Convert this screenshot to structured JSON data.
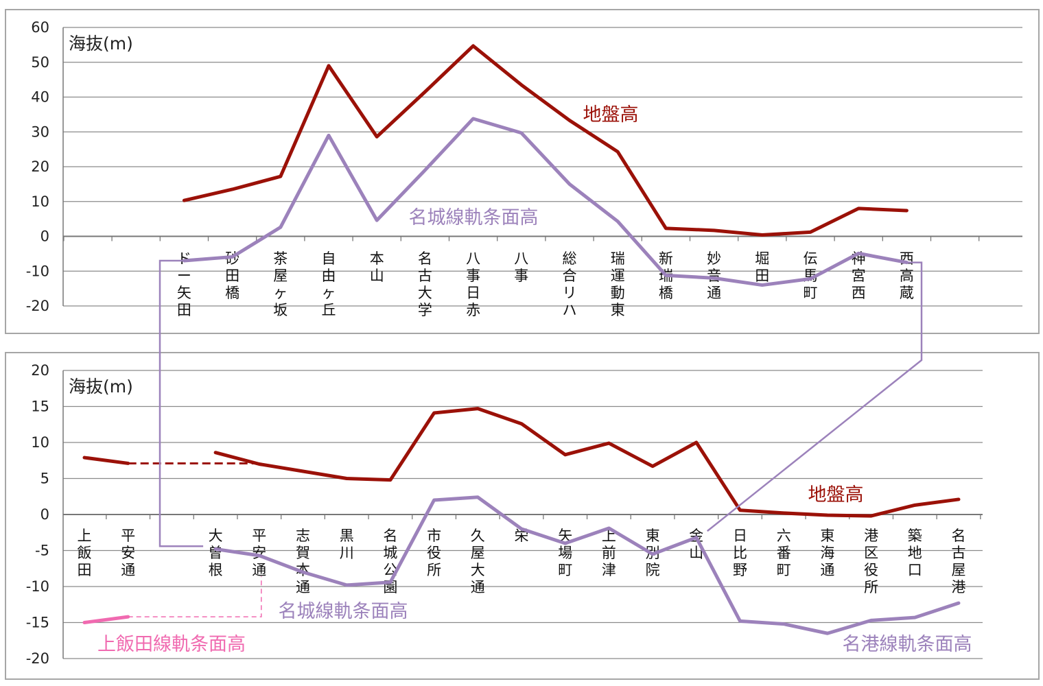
{
  "colors": {
    "ground": "#9b1108",
    "rail": "#9c82bb",
    "kamiiida": "#f06ab0",
    "grid": "#8a8a8a",
    "frame": "#a6a6a6"
  },
  "chart_data": [
    {
      "type": "line",
      "ylabel": "海抜(m)",
      "ylim": [
        -20,
        60
      ],
      "yticks": [
        60,
        50,
        40,
        30,
        20,
        10,
        0,
        -10,
        -20
      ],
      "grid": true,
      "categories": [
        "",
        "",
        "ド|ー|矢|田",
        "砂|田|橋",
        "茶|屋|ヶ|坂",
        "自|由|ヶ|丘",
        "本|山",
        "名|古|大|学",
        "八|事|日|赤",
        "八|事",
        "総|合|リ|ハ",
        "瑞|運|動|東",
        "新|瑞|橋",
        "妙|音|通",
        "堀|田",
        "伝|馬|町",
        "神|宮|西",
        "西|高|蔵",
        ""
      ],
      "series": [
        {
          "name": "地盤高",
          "color": "ground",
          "values": [
            null,
            null,
            10.3,
            13.5,
            17.2,
            49,
            28.6,
            41.5,
            54.7,
            43.5,
            33.3,
            24.3,
            2.3,
            1.7,
            0.4,
            1.2,
            8,
            7.4,
            null
          ]
        },
        {
          "name": "名城線軌条面高",
          "color": "rail",
          "values": [
            null,
            null,
            -7,
            -5.9,
            2.6,
            29,
            4.6,
            19,
            33.8,
            29.7,
            15,
            4.3,
            -11.2,
            -12,
            -14,
            -12.2,
            -4.9,
            -7.5,
            null
          ]
        }
      ],
      "annotations": [
        {
          "text": "地盤高",
          "color": "ground"
        },
        {
          "text": "名城線軌条面高",
          "color": "rail"
        }
      ]
    },
    {
      "type": "line",
      "ylabel": "海抜(m)",
      "ylim": [
        -20,
        20
      ],
      "yticks": [
        20,
        15,
        10,
        5,
        0,
        -5,
        -10,
        -15,
        -20
      ],
      "grid": true,
      "categories": [
        "上|飯|田",
        "平|安|通",
        "",
        "大|曽|根",
        "平|安|通",
        "志|賀|本|通",
        "黒|川",
        "名|城|公|園",
        "市|役|所",
        "久|屋|大|通",
        "栄",
        "矢|場|町",
        "上|前|津",
        "東|別|院",
        "金|山",
        "日|比|野",
        "六|番|町",
        "東|海|通",
        "港|区|役|所",
        "築|地|口",
        "名|古|屋|港"
      ],
      "series": [
        {
          "name": "地盤高",
          "color": "ground",
          "values": [
            7.9,
            7.1,
            null,
            8.6,
            7,
            6,
            5,
            4.8,
            14.1,
            14.7,
            12.6,
            8.3,
            9.9,
            6.7,
            10,
            0.6,
            0.2,
            -0.1,
            -0.2,
            1.3,
            2.1
          ]
        },
        {
          "name": "名城線軌条面高",
          "color": "rail",
          "values": [
            null,
            null,
            null,
            -4.8,
            -5.7,
            -8,
            -9.8,
            -9.4,
            2,
            2.4,
            -2,
            -4,
            -1.9,
            -5.5,
            -3.2,
            null,
            null,
            null,
            null,
            null,
            null
          ]
        },
        {
          "name": "名港線軌条面高",
          "color": "rail",
          "values": [
            null,
            null,
            null,
            null,
            null,
            null,
            null,
            null,
            null,
            null,
            null,
            null,
            null,
            null,
            -3.2,
            -14.8,
            -15.2,
            -16.5,
            -14.7,
            -14.3,
            -12.3
          ]
        },
        {
          "name": "上飯田線軌条面高",
          "color": "kamiiida",
          "values": [
            -15,
            -14.2,
            null,
            null,
            null,
            null,
            null,
            null,
            null,
            null,
            null,
            null,
            null,
            null,
            null,
            null,
            null,
            null,
            null,
            null,
            null
          ]
        }
      ],
      "annotations": [
        {
          "text": "地盤高",
          "color": "ground"
        },
        {
          "text": "名城線軌条面高",
          "color": "rail"
        },
        {
          "text": "上飯田線軌条面高",
          "color": "kamiiida"
        },
        {
          "text": "名港線軌条面高",
          "color": "rail"
        }
      ]
    }
  ]
}
